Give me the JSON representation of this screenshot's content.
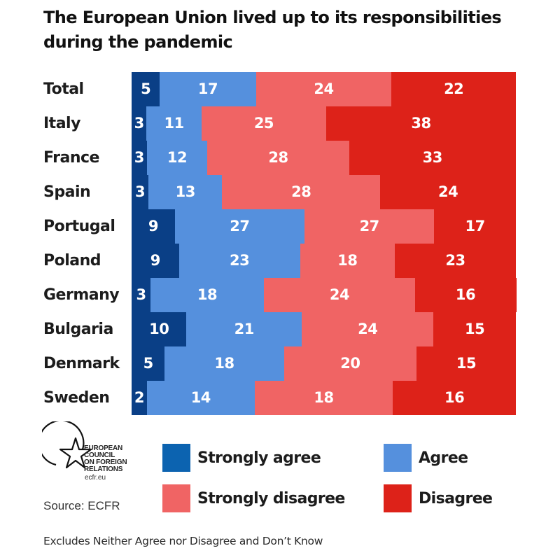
{
  "chart_data": {
    "type": "bar",
    "orientation": "horizontal",
    "stacked": true,
    "title": "The European Union lived up to its responsibilities during the pandemic",
    "xlabel": "",
    "ylabel": "",
    "grid": false,
    "legend_position": "bottom",
    "categories": [
      "Total",
      "Italy",
      "France",
      "Spain",
      "Portugal",
      "Poland",
      "Germany",
      "Bulgaria",
      "Denmark",
      "Sweden"
    ],
    "series": [
      {
        "name": "Strongly agree",
        "color": "#0a3f86",
        "values": [
          5,
          3,
          3,
          3,
          9,
          9,
          3,
          10,
          5,
          2
        ]
      },
      {
        "name": "Agree",
        "color": "#5590dd",
        "values": [
          17,
          11,
          12,
          13,
          27,
          23,
          18,
          21,
          18,
          14
        ]
      },
      {
        "name": "Strongly disagree",
        "color": "#f06464",
        "values": [
          24,
          25,
          28,
          28,
          27,
          18,
          24,
          24,
          20,
          18
        ]
      },
      {
        "name": "Disagree",
        "color": "#dd2219",
        "values": [
          22,
          38,
          33,
          24,
          17,
          23,
          16,
          15,
          15,
          16
        ]
      }
    ],
    "note": "Excludes Neither Agree nor Disagree and Don’t Know"
  },
  "legend": [
    {
      "label": "Strongly agree",
      "color": "#0c63b0"
    },
    {
      "label": "Agree",
      "color": "#5590dd"
    },
    {
      "label": "Strongly disagree",
      "color": "#f06464"
    },
    {
      "label": "Disagree",
      "color": "#dd2219"
    }
  ],
  "logo": {
    "lines": [
      "EUROPEAN",
      "COUNCIL",
      "ON FOREIGN",
      "RELATIONS"
    ],
    "url": "ecfr.eu"
  },
  "source": "Source: ECFR",
  "footnote": "Excludes Neither Agree nor Disagree and Don’t Know"
}
